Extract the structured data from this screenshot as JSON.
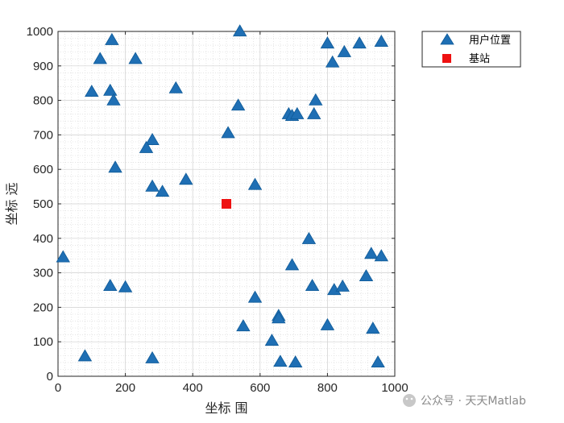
{
  "chart_data": {
    "type": "scatter",
    "xlabel": "坐标 围",
    "ylabel": "坐标 远",
    "xlim": [
      0,
      1000
    ],
    "ylim": [
      0,
      1000
    ],
    "xticks": [
      0,
      200,
      400,
      600,
      800,
      1000
    ],
    "yticks": [
      0,
      100,
      200,
      300,
      400,
      500,
      600,
      700,
      800,
      900,
      1000
    ],
    "grid": "on (minor dotted)",
    "legend_position": "outside-top-right",
    "series": [
      {
        "name": "用户位置",
        "marker": "triangle",
        "color": "#1f6fb4",
        "points": [
          [
            160,
            975
          ],
          [
            540,
            1000
          ],
          [
            125,
            920
          ],
          [
            230,
            920
          ],
          [
            100,
            825
          ],
          [
            155,
            828
          ],
          [
            165,
            800
          ],
          [
            350,
            835
          ],
          [
            535,
            785
          ],
          [
            505,
            705
          ],
          [
            280,
            685
          ],
          [
            262,
            662
          ],
          [
            170,
            605
          ],
          [
            280,
            550
          ],
          [
            310,
            535
          ],
          [
            380,
            570
          ],
          [
            585,
            555
          ],
          [
            15,
            345
          ],
          [
            155,
            262
          ],
          [
            200,
            258
          ],
          [
            80,
            58
          ],
          [
            280,
            52
          ],
          [
            585,
            228
          ],
          [
            550,
            145
          ],
          [
            655,
            175
          ],
          [
            655,
            168
          ],
          [
            635,
            103
          ],
          [
            660,
            42
          ],
          [
            705,
            40
          ],
          [
            800,
            965
          ],
          [
            850,
            940
          ],
          [
            895,
            965
          ],
          [
            960,
            970
          ],
          [
            815,
            910
          ],
          [
            685,
            760
          ],
          [
            695,
            755
          ],
          [
            710,
            760
          ],
          [
            760,
            760
          ],
          [
            765,
            800
          ],
          [
            745,
            398
          ],
          [
            695,
            322
          ],
          [
            755,
            262
          ],
          [
            820,
            250
          ],
          [
            845,
            260
          ],
          [
            915,
            290
          ],
          [
            930,
            355
          ],
          [
            960,
            348
          ],
          [
            800,
            148
          ],
          [
            935,
            138
          ],
          [
            950,
            40
          ]
        ]
      },
      {
        "name": "基站",
        "marker": "square",
        "color": "#ee1111",
        "points": [
          [
            500,
            500
          ]
        ]
      }
    ]
  },
  "watermark": {
    "text": "公众号 · 天天Matlab"
  }
}
